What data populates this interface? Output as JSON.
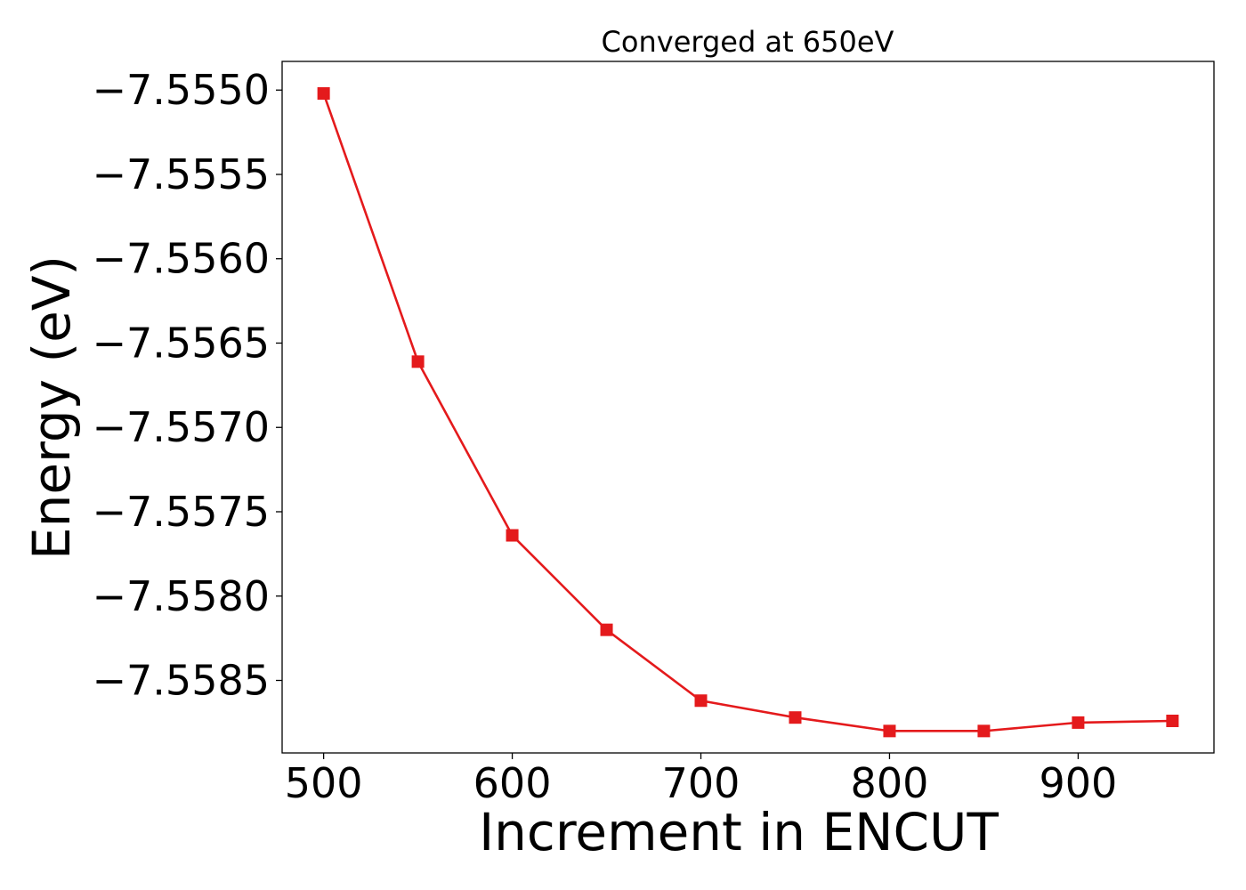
{
  "chart_data": {
    "type": "line",
    "title": "Converged at 650eV",
    "xlabel": "Increment in ENCUT",
    "ylabel": "Energy (eV)",
    "x": [
      500,
      550,
      600,
      650,
      700,
      750,
      800,
      850,
      900,
      950
    ],
    "series": [
      {
        "values": [
          -7.55502,
          -7.55661,
          -7.55764,
          -7.5582,
          -7.55862,
          -7.55872,
          -7.5588,
          -7.5588,
          -7.55875,
          -7.55874
        ],
        "color": "#e41a1c",
        "marker": "square"
      }
    ],
    "xlim": [
      478,
      972
    ],
    "ylim": [
      -7.55893,
      -7.55483
    ],
    "xticks": [
      500,
      600,
      700,
      800,
      900
    ],
    "xtick_labels": [
      "500",
      "600",
      "700",
      "800",
      "900"
    ],
    "yticks": [
      -7.555,
      -7.5555,
      -7.556,
      -7.5565,
      -7.557,
      -7.5575,
      -7.558,
      -7.5585
    ],
    "ytick_labels": [
      "−7.5550",
      "−7.5555",
      "−7.5560",
      "−7.5565",
      "−7.5570",
      "−7.5575",
      "−7.5580",
      "−7.5585"
    ],
    "grid": false,
    "legend": "none"
  }
}
